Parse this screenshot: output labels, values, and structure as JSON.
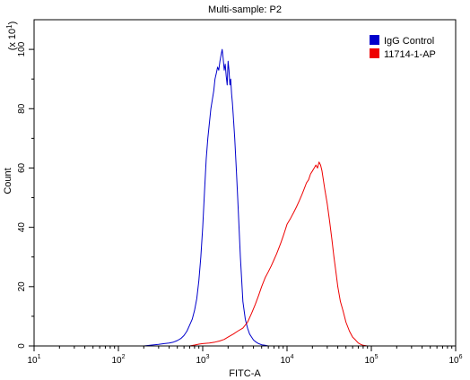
{
  "chart_data": {
    "type": "line",
    "title": "Multi-sample: P2",
    "xlabel": "FITC-A",
    "ylabel": "Count",
    "y_multiplier": "(x 10",
    "y_multiplier_exp": "1",
    "x_scale": "log",
    "xlim": [
      10,
      1000000
    ],
    "ylim": [
      0,
      110
    ],
    "x_ticks": [
      {
        "value": 10,
        "base": "10",
        "exp": "1"
      },
      {
        "value": 100,
        "base": "10",
        "exp": "2"
      },
      {
        "value": 1000,
        "base": "10",
        "exp": "3"
      },
      {
        "value": 10000,
        "base": "10",
        "exp": "4"
      },
      {
        "value": 100000,
        "base": "10",
        "exp": "5"
      },
      {
        "value": 1000000,
        "base": "10",
        "exp": "6"
      }
    ],
    "y_ticks": [
      "0",
      "20",
      "40",
      "60",
      "80",
      "100"
    ],
    "legend_position": "top-right",
    "series": [
      {
        "name": "IgG Control",
        "color": "#0000cc",
        "x": [
          150,
          200,
          250,
          300,
          350,
          400,
          450,
          500,
          550,
          600,
          650,
          700,
          750,
          800,
          850,
          900,
          950,
          1000,
          1050,
          1100,
          1150,
          1200,
          1250,
          1300,
          1350,
          1400,
          1450,
          1500,
          1550,
          1600,
          1650,
          1700,
          1750,
          1800,
          1850,
          1900,
          1950,
          2000,
          2050,
          2100,
          2150,
          2200,
          2250,
          2300,
          2400,
          2500,
          2600,
          2700,
          2800,
          2900,
          3000,
          3200,
          3400,
          3600,
          3800,
          4000,
          4300,
          4600,
          5000,
          5500,
          6000,
          7000
        ],
        "y": [
          0,
          0,
          0.3,
          0.5,
          0.8,
          1.0,
          1.3,
          1.8,
          2.5,
          3.5,
          5,
          7,
          9,
          12,
          16,
          22,
          30,
          40,
          52,
          63,
          70,
          75,
          80,
          83,
          86,
          90,
          92,
          94,
          93,
          96,
          98,
          100,
          97,
          93,
          95,
          91,
          88,
          96,
          93,
          88,
          90,
          85,
          82,
          78,
          70,
          60,
          50,
          40,
          30,
          22,
          15,
          9,
          6,
          4,
          3,
          2,
          1.3,
          0.8,
          0.4,
          0.2,
          0,
          0
        ]
      },
      {
        "name": "11714-1-AP",
        "color": "#ee0000",
        "x": [
          700,
          800,
          900,
          1000,
          1200,
          1400,
          1600,
          1800,
          2000,
          2300,
          2600,
          3000,
          3400,
          3800,
          4200,
          4600,
          5000,
          5500,
          6000,
          6500,
          7000,
          7500,
          8000,
          8500,
          9000,
          9500,
          10000,
          11000,
          12000,
          13000,
          14000,
          15000,
          16000,
          17000,
          18000,
          19000,
          20000,
          21000,
          22000,
          23000,
          24000,
          25000,
          26000,
          27000,
          28000,
          30000,
          32000,
          34000,
          36000,
          38000,
          40000,
          43000,
          46000,
          50000,
          55000,
          60000,
          65000,
          70000,
          75000,
          80000,
          90000
        ],
        "y": [
          0,
          0.3,
          0.6,
          0.8,
          1.0,
          1.3,
          1.7,
          2.2,
          3,
          4,
          5,
          6,
          8,
          11,
          14,
          17,
          20,
          23,
          25,
          27,
          29,
          31,
          33,
          35,
          37,
          39,
          41,
          43,
          45,
          47,
          49,
          51,
          53,
          55,
          56,
          58,
          59,
          60,
          61,
          60,
          62,
          61,
          59,
          56,
          53,
          48,
          42,
          36,
          30,
          25,
          20,
          15,
          12,
          8,
          5,
          3,
          2,
          1,
          0.5,
          0.2,
          0
        ]
      }
    ]
  }
}
